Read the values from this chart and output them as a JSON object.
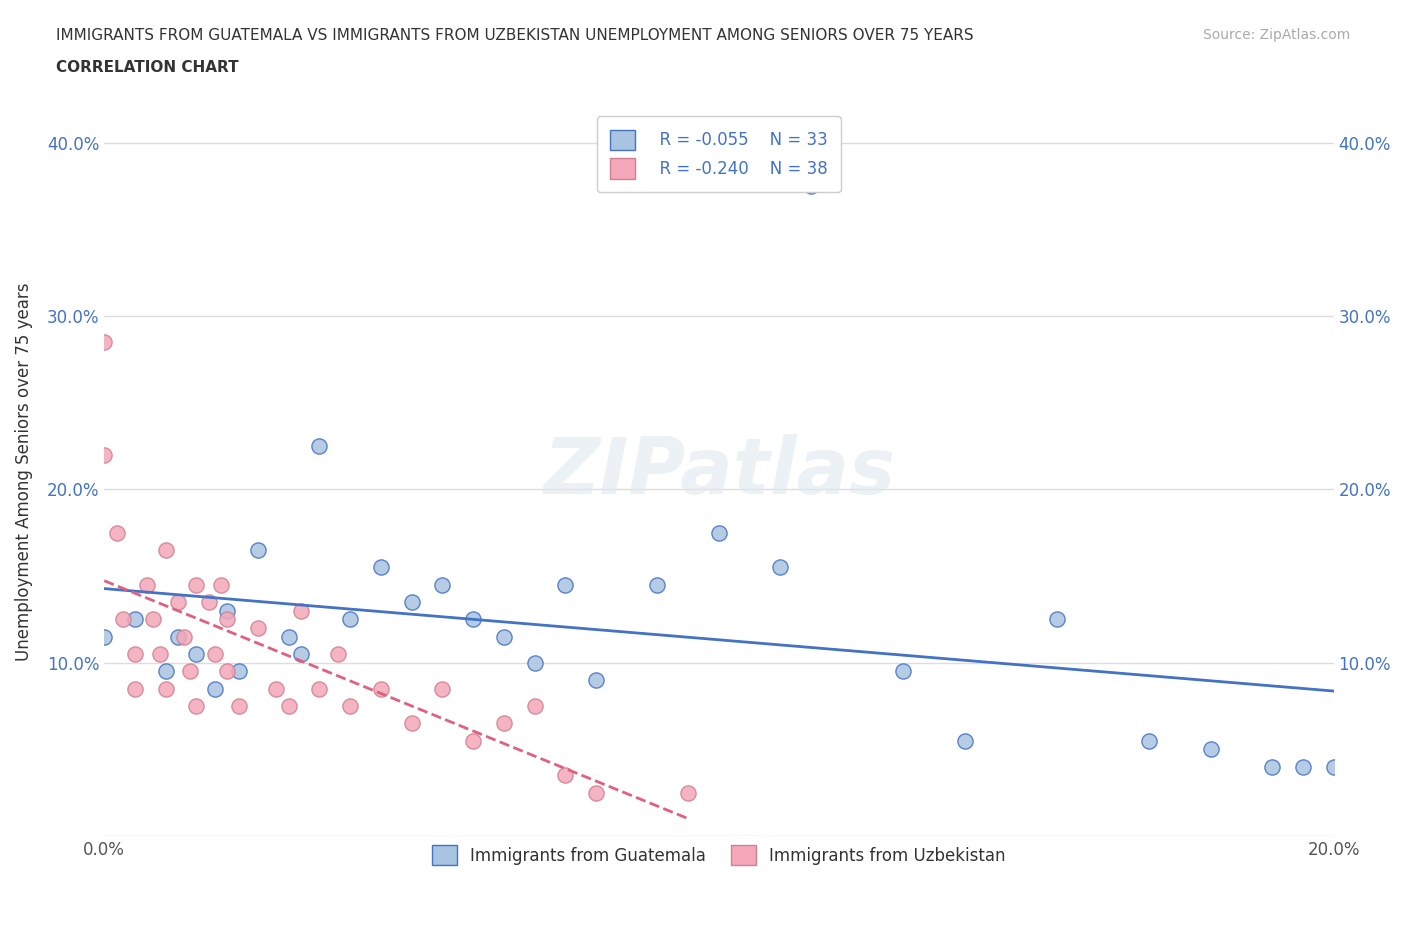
{
  "title_line1": "IMMIGRANTS FROM GUATEMALA VS IMMIGRANTS FROM UZBEKISTAN UNEMPLOYMENT AMONG SENIORS OVER 75 YEARS",
  "title_line2": "CORRELATION CHART",
  "source": "Source: ZipAtlas.com",
  "ylabel": "Unemployment Among Seniors over 75 years",
  "xlim": [
    0.0,
    0.2
  ],
  "ylim": [
    0.0,
    0.42
  ],
  "watermark": "ZIPatlas",
  "legend_R_guatemala": "R = -0.055",
  "legend_N_guatemala": "N = 33",
  "legend_R_uzbekistan": "R = -0.240",
  "legend_N_uzbekistan": "N = 38",
  "color_guatemala": "#a8c4e0",
  "color_uzbekistan": "#f4a7b9",
  "color_trend_guatemala": "#4472c4",
  "color_trend_uzbekistan": "#e06080",
  "guatemala_x": [
    0.0,
    0.005,
    0.01,
    0.012,
    0.015,
    0.018,
    0.02,
    0.022,
    0.025,
    0.03,
    0.032,
    0.035,
    0.04,
    0.045,
    0.05,
    0.055,
    0.06,
    0.065,
    0.07,
    0.075,
    0.08,
    0.09,
    0.1,
    0.11,
    0.115,
    0.13,
    0.14,
    0.155,
    0.17,
    0.18,
    0.19,
    0.195,
    0.2
  ],
  "guatemala_y": [
    0.115,
    0.125,
    0.095,
    0.115,
    0.105,
    0.085,
    0.13,
    0.095,
    0.165,
    0.115,
    0.105,
    0.225,
    0.125,
    0.155,
    0.135,
    0.145,
    0.125,
    0.115,
    0.1,
    0.145,
    0.09,
    0.145,
    0.175,
    0.155,
    0.375,
    0.095,
    0.055,
    0.125,
    0.055,
    0.05,
    0.04,
    0.04,
    0.04
  ],
  "uzbekistan_x": [
    0.0,
    0.0,
    0.002,
    0.003,
    0.005,
    0.005,
    0.007,
    0.008,
    0.009,
    0.01,
    0.01,
    0.012,
    0.013,
    0.014,
    0.015,
    0.015,
    0.017,
    0.018,
    0.019,
    0.02,
    0.02,
    0.022,
    0.025,
    0.028,
    0.03,
    0.032,
    0.035,
    0.038,
    0.04,
    0.045,
    0.05,
    0.055,
    0.06,
    0.065,
    0.07,
    0.075,
    0.08,
    0.095
  ],
  "uzbekistan_y": [
    0.285,
    0.22,
    0.175,
    0.125,
    0.105,
    0.085,
    0.145,
    0.125,
    0.105,
    0.085,
    0.165,
    0.135,
    0.115,
    0.095,
    0.075,
    0.145,
    0.135,
    0.105,
    0.145,
    0.125,
    0.095,
    0.075,
    0.12,
    0.085,
    0.075,
    0.13,
    0.085,
    0.105,
    0.075,
    0.085,
    0.065,
    0.085,
    0.055,
    0.065,
    0.075,
    0.035,
    0.025,
    0.025
  ],
  "grid_color": "#dddddd",
  "background_color": "#ffffff"
}
